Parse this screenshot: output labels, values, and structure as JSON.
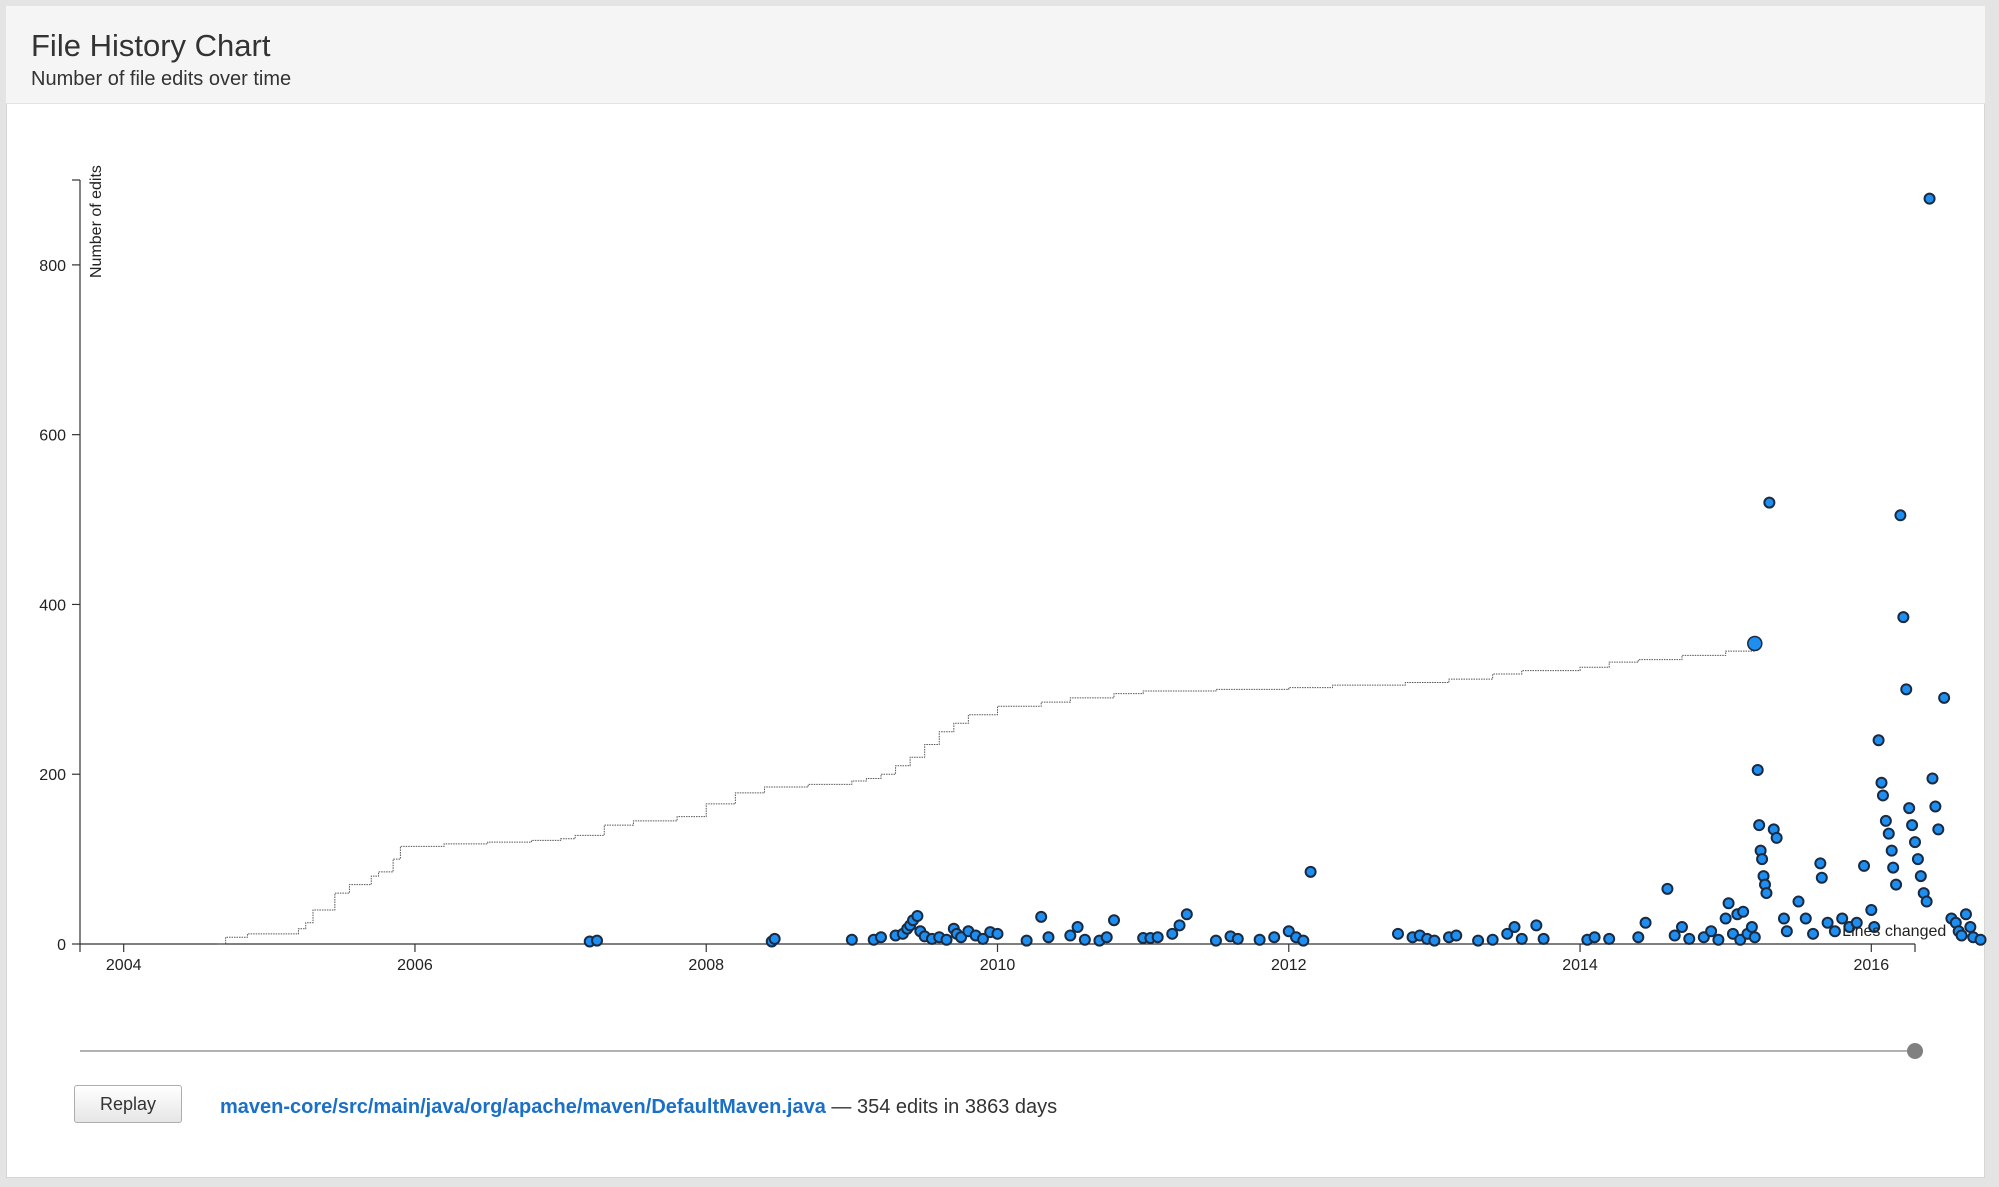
{
  "header": {
    "title": "File History Chart",
    "subtitle": "Number of file edits over time"
  },
  "controls": {
    "replay_label": "Replay"
  },
  "file": {
    "path": "maven-core/src/main/java/org/apache/maven/DefaultMaven.java",
    "separator": " — ",
    "summary": "354 edits in 3863 days"
  },
  "colors": {
    "dot_fill": "#1e8ef0",
    "dot_stroke": "#1a2a40",
    "line": "#555555",
    "axis": "#333333",
    "slider_track": "#999999",
    "slider_handle": "#808080"
  },
  "slider": {
    "value": 1.0
  },
  "chart_data": {
    "type": "scatter",
    "title": "",
    "xlabel": "",
    "ylabel": "Number of edits",
    "xlim": [
      2003.7,
      2016.3
    ],
    "ylim": [
      0,
      900
    ],
    "x_ticks": [
      "2004",
      "2006",
      "2008",
      "2010",
      "2012",
      "2014",
      "2016"
    ],
    "y_ticks": [
      "0",
      "200",
      "400",
      "600",
      "800"
    ],
    "grid": false,
    "overlap_label": "Lines changed",
    "series": [
      {
        "type": "step-line",
        "points": [
          [
            2004.65,
            0
          ],
          [
            2004.7,
            8
          ],
          [
            2004.85,
            12
          ],
          [
            2005.2,
            18
          ],
          [
            2005.25,
            25
          ],
          [
            2005.3,
            40
          ],
          [
            2005.45,
            60
          ],
          [
            2005.55,
            70
          ],
          [
            2005.7,
            80
          ],
          [
            2005.75,
            85
          ],
          [
            2005.85,
            100
          ],
          [
            2005.9,
            115
          ],
          [
            2006.2,
            118
          ],
          [
            2006.5,
            120
          ],
          [
            2006.8,
            122
          ],
          [
            2007.0,
            124
          ],
          [
            2007.1,
            128
          ],
          [
            2007.3,
            140
          ],
          [
            2007.5,
            145
          ],
          [
            2007.8,
            150
          ],
          [
            2008.0,
            165
          ],
          [
            2008.2,
            178
          ],
          [
            2008.4,
            185
          ],
          [
            2008.7,
            188
          ],
          [
            2009.0,
            192
          ],
          [
            2009.1,
            195
          ],
          [
            2009.2,
            200
          ],
          [
            2009.3,
            210
          ],
          [
            2009.4,
            220
          ],
          [
            2009.5,
            235
          ],
          [
            2009.6,
            250
          ],
          [
            2009.7,
            260
          ],
          [
            2009.8,
            270
          ],
          [
            2010.0,
            280
          ],
          [
            2010.3,
            285
          ],
          [
            2010.5,
            290
          ],
          [
            2010.8,
            295
          ],
          [
            2011.0,
            298
          ],
          [
            2011.5,
            300
          ],
          [
            2012.0,
            302
          ],
          [
            2012.3,
            305
          ],
          [
            2012.8,
            308
          ],
          [
            2013.1,
            312
          ],
          [
            2013.4,
            318
          ],
          [
            2013.6,
            322
          ],
          [
            2014.0,
            326
          ],
          [
            2014.2,
            332
          ],
          [
            2014.4,
            335
          ],
          [
            2014.7,
            340
          ],
          [
            2015.0,
            345
          ],
          [
            2015.2,
            354
          ]
        ]
      },
      {
        "type": "scatter",
        "points": [
          [
            2007.2,
            3
          ],
          [
            2007.25,
            4
          ],
          [
            2008.45,
            3
          ],
          [
            2008.47,
            6
          ],
          [
            2009.0,
            5
          ],
          [
            2009.15,
            5
          ],
          [
            2009.2,
            8
          ],
          [
            2009.3,
            10
          ],
          [
            2009.35,
            12
          ],
          [
            2009.38,
            18
          ],
          [
            2009.4,
            22
          ],
          [
            2009.42,
            28
          ],
          [
            2009.45,
            33
          ],
          [
            2009.47,
            15
          ],
          [
            2009.5,
            9
          ],
          [
            2009.55,
            6
          ],
          [
            2009.6,
            8
          ],
          [
            2009.65,
            5
          ],
          [
            2009.7,
            18
          ],
          [
            2009.72,
            12
          ],
          [
            2009.75,
            8
          ],
          [
            2009.8,
            15
          ],
          [
            2009.85,
            10
          ],
          [
            2009.9,
            6
          ],
          [
            2009.95,
            14
          ],
          [
            2010.0,
            12
          ],
          [
            2010.2,
            4
          ],
          [
            2010.3,
            32
          ],
          [
            2010.35,
            8
          ],
          [
            2010.5,
            10
          ],
          [
            2010.55,
            20
          ],
          [
            2010.6,
            5
          ],
          [
            2010.7,
            4
          ],
          [
            2010.75,
            8
          ],
          [
            2010.8,
            28
          ],
          [
            2011.0,
            7
          ],
          [
            2011.05,
            7
          ],
          [
            2011.1,
            8
          ],
          [
            2011.2,
            12
          ],
          [
            2011.25,
            22
          ],
          [
            2011.3,
            35
          ],
          [
            2011.5,
            4
          ],
          [
            2011.6,
            9
          ],
          [
            2011.65,
            6
          ],
          [
            2011.8,
            5
          ],
          [
            2011.9,
            8
          ],
          [
            2012.0,
            15
          ],
          [
            2012.05,
            8
          ],
          [
            2012.1,
            4
          ],
          [
            2012.15,
            85
          ],
          [
            2012.75,
            12
          ],
          [
            2012.85,
            8
          ],
          [
            2012.9,
            10
          ],
          [
            2012.95,
            6
          ],
          [
            2013.0,
            4
          ],
          [
            2013.1,
            8
          ],
          [
            2013.15,
            10
          ],
          [
            2013.3,
            4
          ],
          [
            2013.4,
            5
          ],
          [
            2013.5,
            12
          ],
          [
            2013.55,
            20
          ],
          [
            2013.6,
            6
          ],
          [
            2013.7,
            22
          ],
          [
            2013.75,
            6
          ],
          [
            2014.05,
            5
          ],
          [
            2014.1,
            8
          ],
          [
            2014.2,
            6
          ],
          [
            2014.4,
            8
          ],
          [
            2014.45,
            25
          ],
          [
            2014.6,
            65
          ],
          [
            2014.65,
            10
          ],
          [
            2014.7,
            20
          ],
          [
            2014.75,
            6
          ],
          [
            2014.85,
            8
          ],
          [
            2014.9,
            15
          ],
          [
            2014.95,
            5
          ],
          [
            2015.0,
            30
          ],
          [
            2015.02,
            48
          ],
          [
            2015.05,
            12
          ],
          [
            2015.08,
            35
          ],
          [
            2015.1,
            5
          ],
          [
            2015.12,
            38
          ],
          [
            2015.15,
            12
          ],
          [
            2015.18,
            20
          ],
          [
            2015.2,
            8
          ],
          [
            2015.22,
            205
          ],
          [
            2015.23,
            140
          ],
          [
            2015.24,
            110
          ],
          [
            2015.25,
            100
          ],
          [
            2015.26,
            80
          ],
          [
            2015.27,
            70
          ],
          [
            2015.28,
            60
          ],
          [
            2015.3,
            520
          ],
          [
            2015.33,
            135
          ],
          [
            2015.35,
            125
          ],
          [
            2015.4,
            30
          ],
          [
            2015.42,
            15
          ],
          [
            2015.5,
            50
          ],
          [
            2015.55,
            30
          ],
          [
            2015.6,
            12
          ],
          [
            2015.65,
            95
          ],
          [
            2015.66,
            78
          ],
          [
            2015.7,
            25
          ],
          [
            2015.75,
            15
          ],
          [
            2015.8,
            30
          ],
          [
            2015.85,
            20
          ],
          [
            2015.9,
            25
          ],
          [
            2015.95,
            92
          ],
          [
            2016.0,
            40
          ],
          [
            2016.02,
            20
          ],
          [
            2016.05,
            240
          ],
          [
            2016.07,
            190
          ],
          [
            2016.08,
            175
          ],
          [
            2016.1,
            145
          ],
          [
            2016.12,
            130
          ],
          [
            2016.14,
            110
          ],
          [
            2016.15,
            90
          ],
          [
            2016.17,
            70
          ],
          [
            2016.2,
            505
          ],
          [
            2016.22,
            385
          ],
          [
            2016.24,
            300
          ],
          [
            2016.26,
            160
          ],
          [
            2016.28,
            140
          ],
          [
            2016.3,
            120
          ],
          [
            2016.32,
            100
          ],
          [
            2016.34,
            80
          ],
          [
            2016.36,
            60
          ],
          [
            2016.38,
            50
          ],
          [
            2016.4,
            878
          ],
          [
            2016.42,
            195
          ],
          [
            2016.44,
            162
          ],
          [
            2016.46,
            135
          ],
          [
            2016.5,
            290
          ],
          [
            2016.55,
            30
          ],
          [
            2016.58,
            25
          ],
          [
            2016.6,
            15
          ],
          [
            2016.62,
            10
          ],
          [
            2016.65,
            35
          ],
          [
            2016.68,
            20
          ],
          [
            2016.7,
            8
          ],
          [
            2016.75,
            5
          ]
        ]
      }
    ],
    "highlight_point": [
      2015.2,
      354
    ]
  }
}
